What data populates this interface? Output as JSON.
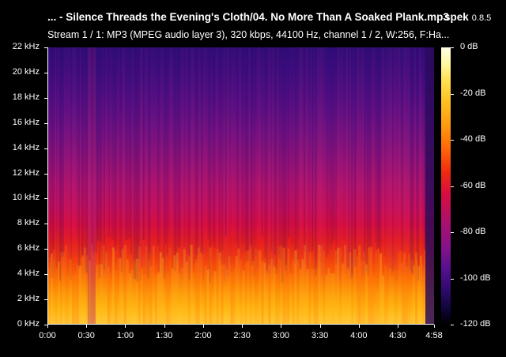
{
  "header": {
    "title": "... - Silence Threads the Evening's Cloth/04. No More Than A Soaked Plank.mp3",
    "app_name": "spek",
    "app_version": "0.8.5",
    "stream_info": "Stream 1 / 1: MP3 (MPEG audio layer 3), 320 kbps, 44100 Hz, channel 1 / 2, W:256, F:Ha..."
  },
  "chart_data": {
    "type": "heatmap",
    "y_labels": [
      "22 kHz",
      "20 kHz",
      "18 kHz",
      "16 kHz",
      "14 kHz",
      "12 kHz",
      "10 kHz",
      "8 kHz",
      "6 kHz",
      "4 kHz",
      "2 kHz",
      "0 kHz"
    ],
    "y_values_khz": [
      22,
      20,
      18,
      16,
      14,
      12,
      10,
      8,
      6,
      4,
      2,
      0
    ],
    "x_labels": [
      "0:00",
      "0:30",
      "1:00",
      "1:30",
      "2:00",
      "2:30",
      "3:00",
      "3:30",
      "4:00",
      "4:30",
      "4:58"
    ],
    "x_values_sec": [
      0,
      30,
      60,
      90,
      120,
      150,
      180,
      210,
      240,
      270,
      298
    ],
    "colorbar_labels": [
      "0 dB",
      "-20 dB",
      "-40 dB",
      "-60 dB",
      "-80 dB",
      "-100 dB",
      "-120 dB"
    ],
    "colorbar_values_db": [
      0,
      -20,
      -40,
      -60,
      -80,
      -100,
      -120
    ],
    "colors": {
      "background": "#000000",
      "low": "#3a0f8a",
      "mid": "#d90d3d",
      "high": "#ffd040"
    }
  }
}
